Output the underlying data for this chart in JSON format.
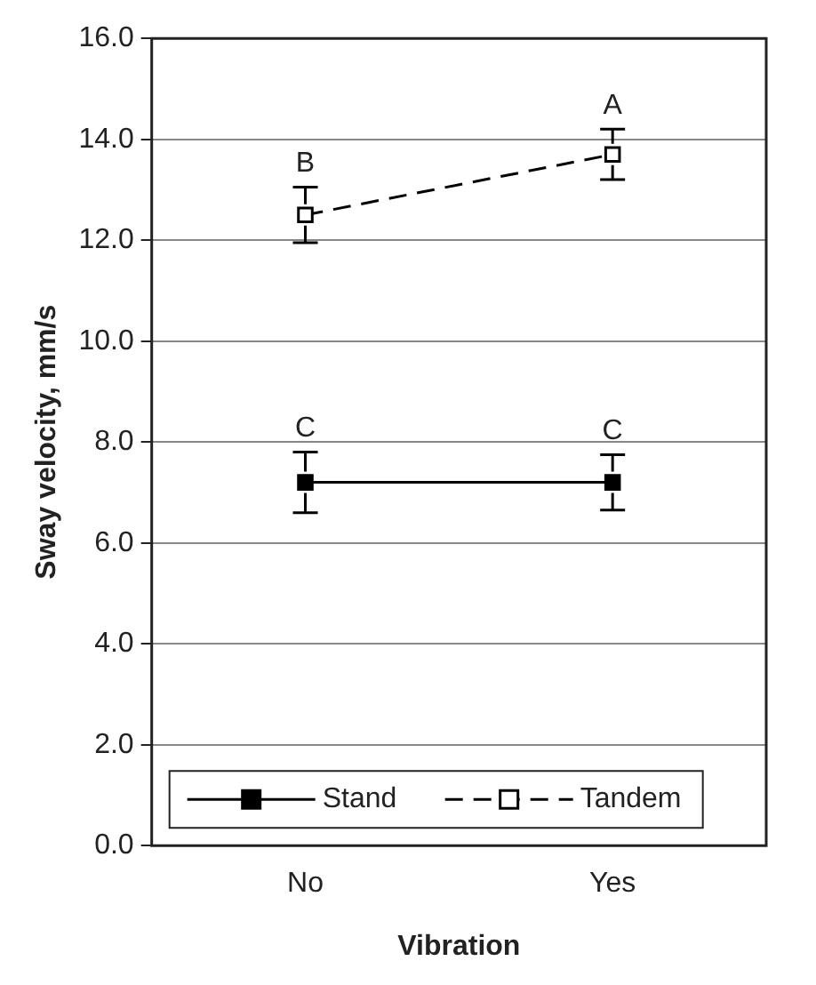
{
  "chart_data": {
    "type": "line",
    "xlabel": "Vibration",
    "ylabel": "Sway velocity, mm/s",
    "categories": [
      "No",
      "Yes"
    ],
    "series": [
      {
        "name": "Stand",
        "color": "#000000",
        "values": [
          7.2,
          7.2
        ],
        "errors": [
          0.6,
          0.55
        ],
        "line_style": "solid",
        "marker": "square"
      },
      {
        "name": "Tandem",
        "color": "#000000",
        "values": [
          12.5,
          13.7
        ],
        "errors": [
          0.55,
          0.5
        ],
        "line_style": "dashed",
        "marker": "square"
      }
    ],
    "ylim": [
      0,
      16
    ],
    "yticks": [
      {
        "value": 0,
        "label": "0.0"
      },
      {
        "value": 2,
        "label": "2.0"
      },
      {
        "value": 4,
        "label": "4.0"
      },
      {
        "value": 6,
        "label": "6.0"
      },
      {
        "value": 8,
        "label": "8.0"
      },
      {
        "value": 10,
        "label": "10.0"
      },
      {
        "value": 12,
        "label": "12.0"
      },
      {
        "value": 14,
        "label": "14.0"
      },
      {
        "value": 16,
        "label": "16.0"
      }
    ],
    "grid": "y",
    "legend": "bottom",
    "annotations": [
      "B",
      "A",
      "C",
      "C"
    ]
  }
}
